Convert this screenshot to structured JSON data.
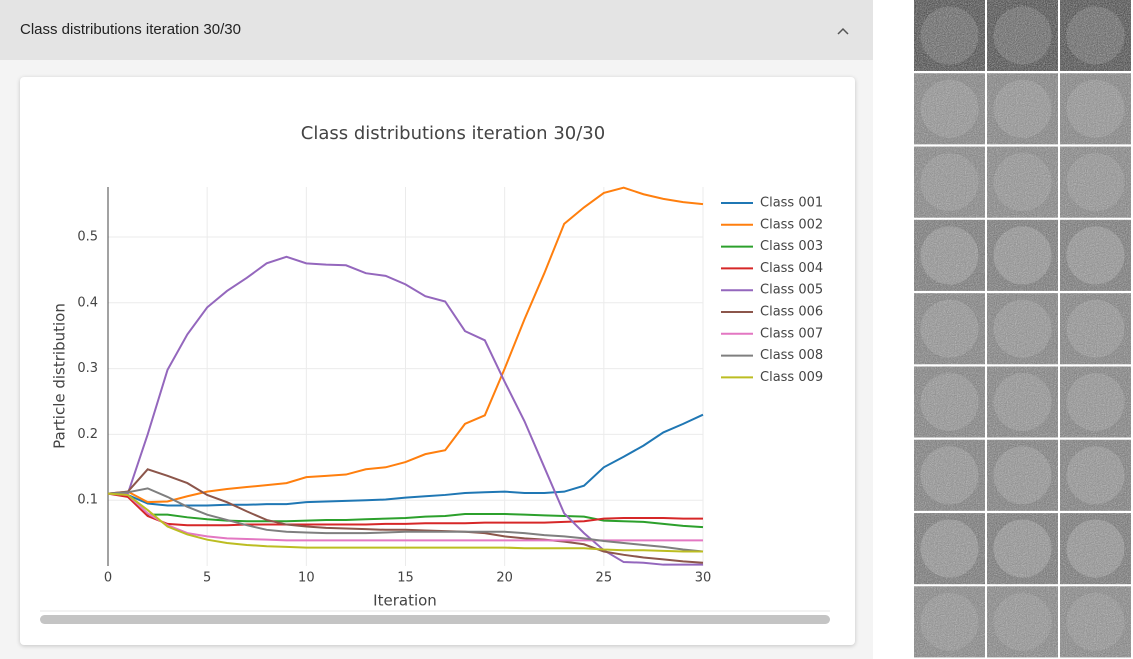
{
  "header": {
    "title": "Class distributions iteration 30/30"
  },
  "chart_data": {
    "type": "line",
    "title": "Class distributions iteration 30/30",
    "x_label": "Iteration",
    "y_label": "Particle distribution",
    "x": [
      0,
      1,
      2,
      3,
      4,
      5,
      6,
      7,
      8,
      9,
      10,
      11,
      12,
      13,
      14,
      15,
      16,
      17,
      18,
      19,
      20,
      21,
      22,
      23,
      24,
      25,
      26,
      27,
      28,
      29,
      30
    ],
    "xlim": [
      0,
      30
    ],
    "xticks": [
      0,
      5,
      10,
      15,
      20,
      25,
      30
    ],
    "ylim": [
      0,
      0.576
    ],
    "yticks": [
      0.1,
      0.2,
      0.3,
      0.4,
      0.5
    ],
    "grid": true,
    "series": [
      {
        "name": "Class 001",
        "color": "#1f77b4",
        "values": [
          0.11,
          0.108,
          0.095,
          0.092,
          0.092,
          0.092,
          0.093,
          0.093,
          0.094,
          0.094,
          0.097,
          0.098,
          0.099,
          0.1,
          0.101,
          0.104,
          0.106,
          0.108,
          0.111,
          0.112,
          0.113,
          0.111,
          0.111,
          0.113,
          0.122,
          0.15,
          0.166,
          0.183,
          0.203,
          0.216,
          0.23
        ]
      },
      {
        "name": "Class 002",
        "color": "#ff7f0e",
        "values": [
          0.11,
          0.113,
          0.097,
          0.098,
          0.106,
          0.113,
          0.117,
          0.12,
          0.123,
          0.126,
          0.135,
          0.137,
          0.139,
          0.147,
          0.15,
          0.158,
          0.17,
          0.176,
          0.216,
          0.229,
          0.3,
          0.375,
          0.445,
          0.52,
          0.545,
          0.567,
          0.575,
          0.565,
          0.558,
          0.553,
          0.55
        ]
      },
      {
        "name": "Class 003",
        "color": "#2ca02c",
        "values": [
          0.11,
          0.108,
          0.078,
          0.078,
          0.074,
          0.071,
          0.069,
          0.068,
          0.068,
          0.068,
          0.069,
          0.07,
          0.07,
          0.071,
          0.072,
          0.073,
          0.075,
          0.076,
          0.079,
          0.079,
          0.079,
          0.078,
          0.077,
          0.076,
          0.075,
          0.069,
          0.068,
          0.067,
          0.064,
          0.061,
          0.059
        ]
      },
      {
        "name": "Class 004",
        "color": "#d62728",
        "values": [
          0.11,
          0.105,
          0.076,
          0.064,
          0.062,
          0.062,
          0.062,
          0.063,
          0.063,
          0.063,
          0.063,
          0.063,
          0.063,
          0.063,
          0.064,
          0.064,
          0.065,
          0.065,
          0.065,
          0.066,
          0.066,
          0.066,
          0.066,
          0.067,
          0.068,
          0.072,
          0.073,
          0.073,
          0.073,
          0.072,
          0.072
        ]
      },
      {
        "name": "Class 005",
        "color": "#9467bd",
        "values": [
          0.11,
          0.11,
          0.2,
          0.298,
          0.352,
          0.393,
          0.418,
          0.438,
          0.46,
          0.47,
          0.46,
          0.458,
          0.457,
          0.445,
          0.441,
          0.428,
          0.41,
          0.402,
          0.357,
          0.343,
          0.28,
          0.22,
          0.15,
          0.08,
          0.05,
          0.024,
          0.006,
          0.005,
          0.002,
          0.002,
          0.002
        ]
      },
      {
        "name": "Class 006",
        "color": "#8c564b",
        "values": [
          0.11,
          0.113,
          0.147,
          0.137,
          0.126,
          0.108,
          0.097,
          0.083,
          0.07,
          0.063,
          0.06,
          0.058,
          0.057,
          0.056,
          0.055,
          0.055,
          0.054,
          0.053,
          0.052,
          0.05,
          0.045,
          0.042,
          0.04,
          0.037,
          0.033,
          0.022,
          0.017,
          0.013,
          0.01,
          0.007,
          0.005
        ]
      },
      {
        "name": "Class 007",
        "color": "#e377c2",
        "values": [
          0.11,
          0.108,
          0.08,
          0.062,
          0.05,
          0.045,
          0.042,
          0.041,
          0.04,
          0.039,
          0.039,
          0.039,
          0.039,
          0.039,
          0.039,
          0.039,
          0.039,
          0.039,
          0.039,
          0.039,
          0.039,
          0.039,
          0.039,
          0.039,
          0.039,
          0.039,
          0.039,
          0.039,
          0.039,
          0.039,
          0.039
        ]
      },
      {
        "name": "Class 008",
        "color": "#7f7f7f",
        "values": [
          0.11,
          0.112,
          0.118,
          0.105,
          0.09,
          0.078,
          0.07,
          0.062,
          0.055,
          0.052,
          0.051,
          0.05,
          0.05,
          0.05,
          0.051,
          0.052,
          0.052,
          0.052,
          0.052,
          0.052,
          0.052,
          0.05,
          0.047,
          0.045,
          0.042,
          0.038,
          0.035,
          0.032,
          0.029,
          0.025,
          0.022
        ]
      },
      {
        "name": "Class 009",
        "color": "#bcbd22",
        "values": [
          0.11,
          0.108,
          0.085,
          0.06,
          0.048,
          0.04,
          0.035,
          0.032,
          0.03,
          0.029,
          0.028,
          0.028,
          0.028,
          0.028,
          0.028,
          0.028,
          0.028,
          0.028,
          0.028,
          0.028,
          0.028,
          0.027,
          0.027,
          0.027,
          0.027,
          0.025,
          0.024,
          0.024,
          0.023,
          0.022,
          0.022
        ]
      }
    ]
  }
}
